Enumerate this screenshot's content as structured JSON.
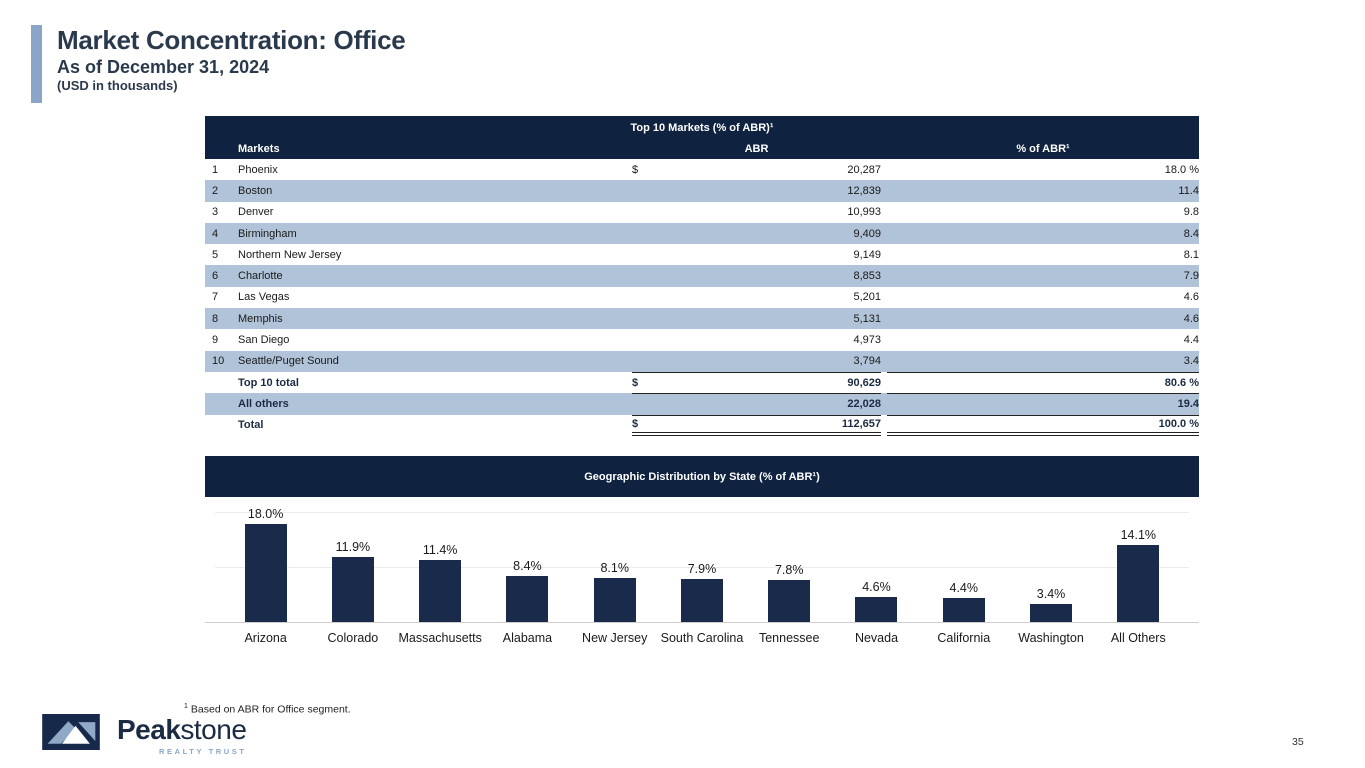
{
  "header": {
    "title": "Market Concentration: Office",
    "subtitle": "As of December 31, 2024",
    "units": "(USD in thousands)"
  },
  "table": {
    "title": "Top 10 Markets (% of ABR)¹",
    "columns": {
      "market": "Markets",
      "abr": "ABR",
      "pct": "% of ABR¹"
    },
    "rows": [
      {
        "rank": "1",
        "market": "Phoenix",
        "dollar": "$",
        "abr": "20,287",
        "pct": "18.0 %",
        "kind": "data",
        "shaded": false
      },
      {
        "rank": "2",
        "market": "Boston",
        "dollar": "",
        "abr": "12,839",
        "pct": "11.4",
        "kind": "data",
        "shaded": true
      },
      {
        "rank": "3",
        "market": "Denver",
        "dollar": "",
        "abr": "10,993",
        "pct": "9.8",
        "kind": "data",
        "shaded": false
      },
      {
        "rank": "4",
        "market": "Birmingham",
        "dollar": "",
        "abr": "9,409",
        "pct": "8.4",
        "kind": "data",
        "shaded": true
      },
      {
        "rank": "5",
        "market": "Northern New Jersey",
        "dollar": "",
        "abr": "9,149",
        "pct": "8.1",
        "kind": "data",
        "shaded": false
      },
      {
        "rank": "6",
        "market": "Charlotte",
        "dollar": "",
        "abr": "8,853",
        "pct": "7.9",
        "kind": "data",
        "shaded": true
      },
      {
        "rank": "7",
        "market": "Las Vegas",
        "dollar": "",
        "abr": "5,201",
        "pct": "4.6",
        "kind": "data",
        "shaded": false
      },
      {
        "rank": "8",
        "market": "Memphis",
        "dollar": "",
        "abr": "5,131",
        "pct": "4.6",
        "kind": "data",
        "shaded": true
      },
      {
        "rank": "9",
        "market": "San Diego",
        "dollar": "",
        "abr": "4,973",
        "pct": "4.4",
        "kind": "data",
        "shaded": false
      },
      {
        "rank": "10",
        "market": "Seattle/Puget Sound",
        "dollar": "",
        "abr": "3,794",
        "pct": "3.4",
        "kind": "data",
        "shaded": true
      },
      {
        "rank": "",
        "market": "Top 10 total",
        "dollar": "$",
        "abr": "90,629",
        "pct": "80.6 %",
        "kind": "total",
        "shaded": false
      },
      {
        "rank": "",
        "market": "All others",
        "dollar": "",
        "abr": "22,028",
        "pct": "19.4",
        "kind": "total",
        "shaded": true
      },
      {
        "rank": "",
        "market": "Total",
        "dollar": "$",
        "abr": "112,657",
        "pct": "100.0 %",
        "kind": "grand",
        "shaded": false
      }
    ]
  },
  "chart_data": {
    "type": "bar",
    "title": "Geographic Distribution by State (% of ABR¹)",
    "categories": [
      "Arizona",
      "Colorado",
      "Massachusetts",
      "Alabama",
      "New Jersey",
      "South Carolina",
      "Tennessee",
      "Nevada",
      "California",
      "Washington",
      "All Others"
    ],
    "values": [
      18.0,
      11.9,
      11.4,
      8.4,
      8.1,
      7.9,
      7.8,
      4.6,
      4.4,
      3.4,
      14.1
    ],
    "value_labels": [
      "18.0%",
      "11.9%",
      "11.4%",
      "8.4%",
      "8.1%",
      "7.9%",
      "7.8%",
      "4.6%",
      "4.4%",
      "3.4%",
      "14.1%"
    ],
    "xlabel": "",
    "ylabel": "",
    "ylim": [
      0,
      22
    ],
    "gridlines_pct": [
      10,
      20
    ],
    "legend": "none",
    "bar_color": "#1a2a4a"
  },
  "footer": {
    "footnote_sup": "1",
    "footnote_text": "Based on ABR for Office segment.",
    "page_number": "35",
    "logo": {
      "brand_bold": "Peak",
      "brand_light": "stone",
      "tagline": "REALTY TRUST"
    }
  },
  "colors": {
    "navy": "#0f2240",
    "row_blue": "#b0c3d8",
    "accent": "#8aa5c8",
    "bar_navy": "#1a2a4a",
    "title_ink": "#2a3a4c",
    "total_ink": "#1b2b44"
  }
}
